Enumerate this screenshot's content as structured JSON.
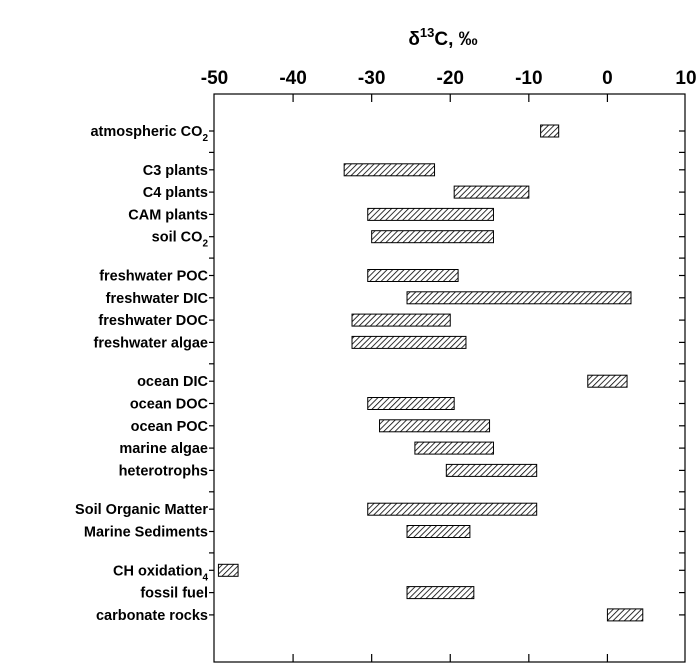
{
  "chart_data": {
    "type": "bar",
    "orientation": "horizontal-range",
    "title": "δ13C, ‰",
    "title_parts": {
      "delta": "δ",
      "sup": "13",
      "rest": "C, ‰"
    },
    "xlim": [
      -50,
      10
    ],
    "x_ticks": [
      "-50",
      "-40",
      "-30",
      "-20",
      "-10",
      "0",
      "10"
    ],
    "x_tick_values": [
      -50,
      -40,
      -30,
      -20,
      -10,
      0,
      10
    ],
    "x_axis_position": "top",
    "grid": false,
    "legend": "none",
    "bar_fill": "hatched",
    "series": [
      {
        "label": "atmospheric CO2",
        "name": "atmospheric CO",
        "sub": "2",
        "range": [
          -8.5,
          -6.2
        ]
      },
      {
        "label": "C3 plants",
        "name": "C3 plants",
        "sub": "",
        "range": [
          -33.5,
          -22
        ]
      },
      {
        "label": "C4 plants",
        "name": "C4 plants",
        "sub": "",
        "range": [
          -19.5,
          -10
        ]
      },
      {
        "label": "CAM plants",
        "name": "CAM plants",
        "sub": "",
        "range": [
          -30.5,
          -14.5
        ]
      },
      {
        "label": "soil CO2",
        "name": "soil CO",
        "sub": "2",
        "range": [
          -30,
          -14.5
        ]
      },
      {
        "label": "freshwater POC",
        "name": "freshwater POC",
        "sub": "",
        "range": [
          -30.5,
          -19
        ]
      },
      {
        "label": "freshwater DIC",
        "name": "freshwater DIC",
        "sub": "",
        "range": [
          -25.5,
          3
        ]
      },
      {
        "label": "freshwater DOC",
        "name": "freshwater DOC",
        "sub": "",
        "range": [
          -32.5,
          -20
        ]
      },
      {
        "label": "freshwater algae",
        "name": "freshwater algae",
        "sub": "",
        "range": [
          -32.5,
          -18
        ]
      },
      {
        "label": "ocean DIC",
        "name": "ocean DIC",
        "sub": "",
        "range": [
          -2.5,
          2.5
        ]
      },
      {
        "label": "ocean DOC",
        "name": "ocean DOC",
        "sub": "",
        "range": [
          -30.5,
          -19.5
        ]
      },
      {
        "label": "ocean POC",
        "name": "ocean POC",
        "sub": "",
        "range": [
          -29,
          -15
        ]
      },
      {
        "label": "marine algae",
        "name": "marine algae",
        "sub": "",
        "range": [
          -24.5,
          -14.5
        ]
      },
      {
        "label": "heterotrophs",
        "name": "heterotrophs",
        "sub": "",
        "range": [
          -20.5,
          -9
        ]
      },
      {
        "label": "Soil Organic Matter",
        "name": "Soil Organic Matter",
        "sub": "",
        "range": [
          -30.5,
          -9
        ]
      },
      {
        "label": "Marine Sediments",
        "name": "Marine Sediments",
        "sub": "",
        "range": [
          -25.5,
          -17.5
        ]
      },
      {
        "label": "CH4 oxidation",
        "name": "CH oxidation",
        "sub": "4",
        "range": [
          -49.5,
          -47
        ]
      },
      {
        "label": "fossil fuel",
        "name": "fossil fuel",
        "sub": "",
        "range": [
          -25.5,
          -17
        ]
      },
      {
        "label": "carbonate rocks",
        "name": "carbonate rocks",
        "sub": "",
        "range": [
          0,
          4.5
        ]
      }
    ]
  }
}
